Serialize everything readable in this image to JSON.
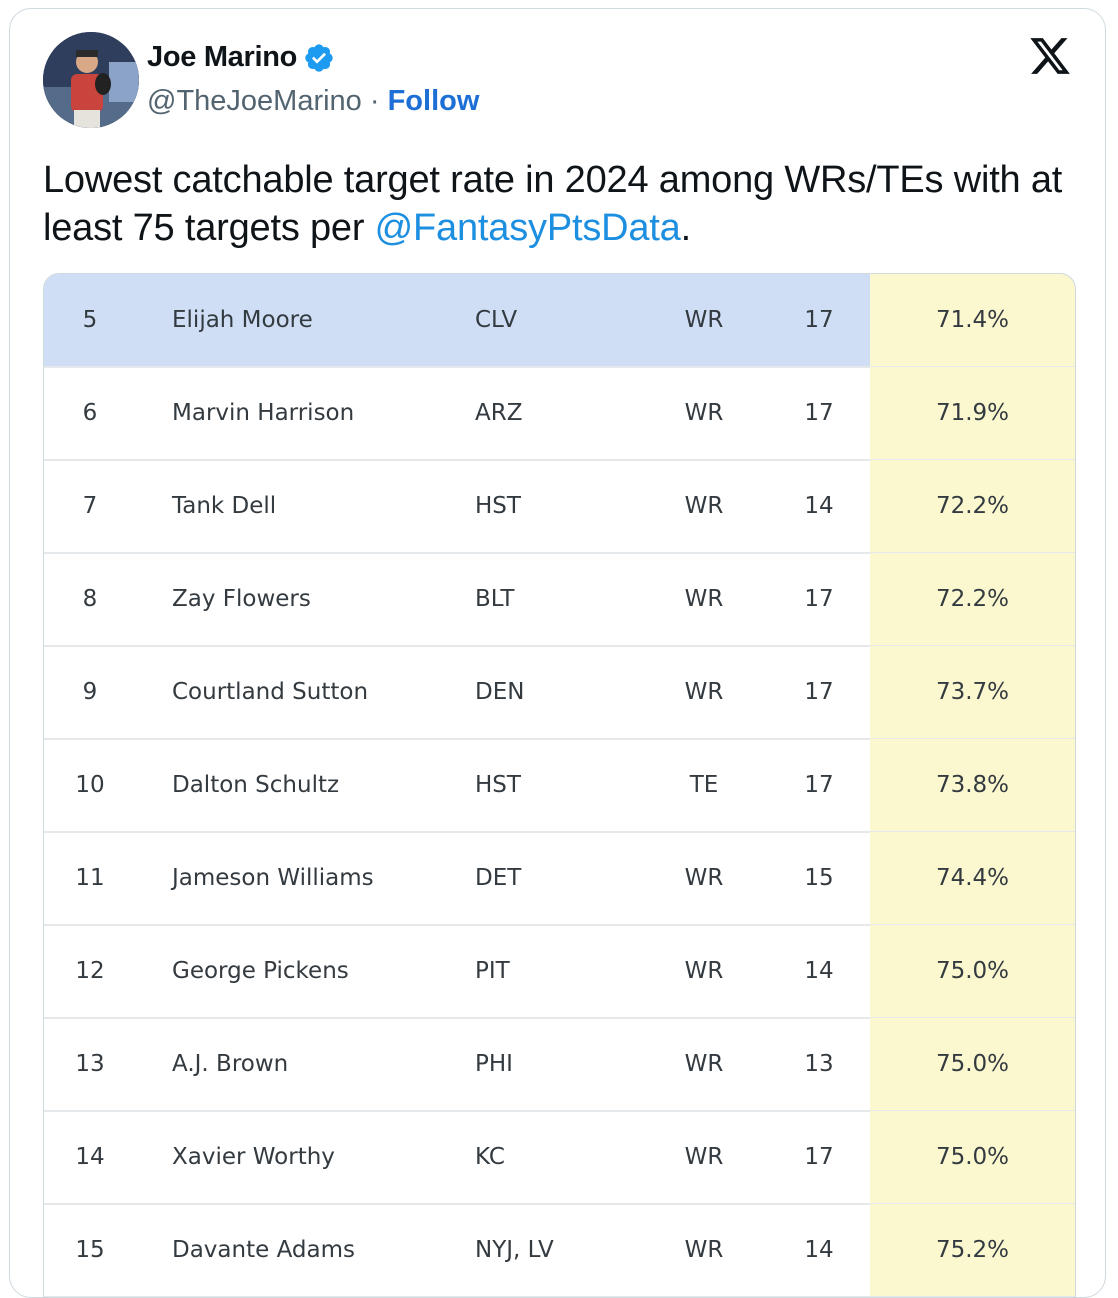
{
  "author": {
    "name": "Joe Marino",
    "handle": "@TheJoeMarino",
    "separator": "·",
    "follow_label": "Follow"
  },
  "tweet": {
    "text_before": "Lowest catchable target rate in 2024 among WRs/TEs with at least 75 targets per ",
    "mention": "@FantasyPtsData",
    "text_after": "."
  },
  "icons": {
    "verified": "verified-badge-icon",
    "platform": "x-logo-icon"
  },
  "colors": {
    "highlight_row": "#cfdef4",
    "rate_column": "#fbf8cf",
    "link": "#1d8fe0",
    "follow": "#1d6fd6"
  },
  "table": {
    "rows": [
      {
        "rank": "5",
        "name": "Elijah Moore",
        "team": "CLV",
        "pos": "WR",
        "games": "17",
        "rate": "71.4%"
      },
      {
        "rank": "6",
        "name": "Marvin Harrison",
        "team": "ARZ",
        "pos": "WR",
        "games": "17",
        "rate": "71.9%"
      },
      {
        "rank": "7",
        "name": "Tank Dell",
        "team": "HST",
        "pos": "WR",
        "games": "14",
        "rate": "72.2%"
      },
      {
        "rank": "8",
        "name": "Zay Flowers",
        "team": "BLT",
        "pos": "WR",
        "games": "17",
        "rate": "72.2%"
      },
      {
        "rank": "9",
        "name": "Courtland Sutton",
        "team": "DEN",
        "pos": "WR",
        "games": "17",
        "rate": "73.7%"
      },
      {
        "rank": "10",
        "name": "Dalton Schultz",
        "team": "HST",
        "pos": "TE",
        "games": "17",
        "rate": "73.8%"
      },
      {
        "rank": "11",
        "name": "Jameson Williams",
        "team": "DET",
        "pos": "WR",
        "games": "15",
        "rate": "74.4%"
      },
      {
        "rank": "12",
        "name": "George Pickens",
        "team": "PIT",
        "pos": "WR",
        "games": "14",
        "rate": "75.0%"
      },
      {
        "rank": "13",
        "name": "A.J. Brown",
        "team": "PHI",
        "pos": "WR",
        "games": "13",
        "rate": "75.0%"
      },
      {
        "rank": "14",
        "name": "Xavier Worthy",
        "team": "KC",
        "pos": "WR",
        "games": "17",
        "rate": "75.0%"
      },
      {
        "rank": "15",
        "name": "Davante Adams",
        "team": "NYJ, LV",
        "pos": "WR",
        "games": "14",
        "rate": "75.2%"
      }
    ]
  }
}
